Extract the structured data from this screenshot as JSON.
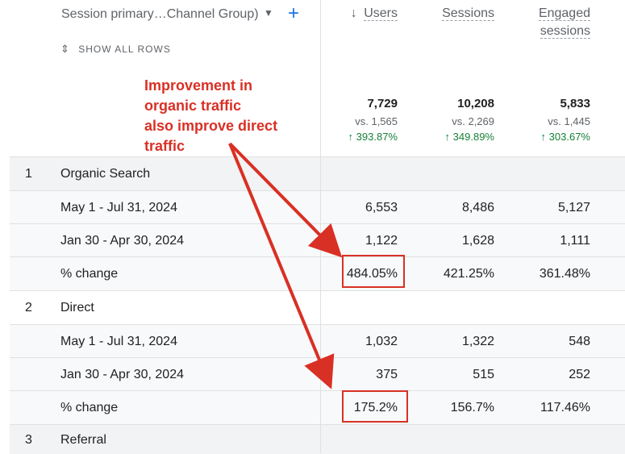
{
  "header": {
    "dimension_label": "Session primary…Channel Group)",
    "show_all_rows": "SHOW ALL ROWS",
    "columns": [
      {
        "key": "users",
        "label": "Users",
        "sorted": true
      },
      {
        "key": "sessions",
        "label": "Sessions"
      },
      {
        "key": "engaged",
        "label_line1": "Engaged",
        "label_line2": "sessions"
      }
    ]
  },
  "totals": [
    {
      "value": "7,729",
      "vs": "vs. 1,565",
      "change": "393.87%"
    },
    {
      "value": "10,208",
      "vs": "vs. 2,269",
      "change": "349.89%"
    },
    {
      "value": "5,833",
      "vs": "vs. 1,445",
      "change": "303.67%"
    }
  ],
  "annotation": {
    "line1": "Improvement in",
    "line2": "organic traffic",
    "line3": "also improve direct",
    "line4": "traffic",
    "color": "#d93025"
  },
  "groups": [
    {
      "index": "1",
      "name": "Organic Search",
      "rows": [
        {
          "label": "May 1 - Jul 31, 2024",
          "values": [
            "6,553",
            "8,486",
            "5,127"
          ]
        },
        {
          "label": "Jan 30 - Apr 30, 2024",
          "values": [
            "1,122",
            "1,628",
            "1,111"
          ]
        },
        {
          "label": "% change",
          "values": [
            "484.05%",
            "421.25%",
            "361.48%"
          ]
        }
      ]
    },
    {
      "index": "2",
      "name": "Direct",
      "rows": [
        {
          "label": "May 1 - Jul 31, 2024",
          "values": [
            "1,032",
            "1,322",
            "548"
          ]
        },
        {
          "label": "Jan 30 - Apr 30, 2024",
          "values": [
            "375",
            "515",
            "252"
          ]
        },
        {
          "label": "% change",
          "values": [
            "175.2%",
            "156.7%",
            "117.46%"
          ]
        }
      ]
    },
    {
      "index": "3",
      "name": "Referral",
      "rows": []
    }
  ],
  "colors": {
    "accent": "#1a73e8",
    "positive": "#188038",
    "annotation": "#d93025",
    "grid": "#e0e0e0"
  }
}
